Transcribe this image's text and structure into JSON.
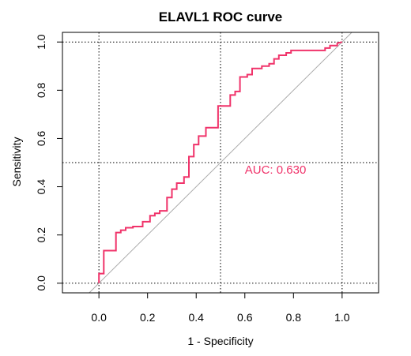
{
  "chart_data": {
    "type": "line",
    "title": "ELAVL1 ROC curve",
    "xlabel": "1 - Specificity",
    "ylabel": "Sensitivity",
    "xlim": [
      -0.15,
      1.15
    ],
    "ylim": [
      -0.04,
      1.04
    ],
    "x_ticks": [
      "0.0",
      "0.2",
      "0.4",
      "0.6",
      "0.8",
      "1.0"
    ],
    "y_ticks": [
      "0.0",
      "0.2",
      "0.4",
      "0.6",
      "0.8",
      "1.0"
    ],
    "grid": "dotted at 0, 0.5 and 1",
    "reference_line": {
      "x": [
        -0.15,
        1.15
      ],
      "y": [
        -0.15,
        1.15
      ],
      "color": "#aaaaaa"
    },
    "auc_text": "AUC: 0.630",
    "auc_position": {
      "x": 0.6,
      "y": 0.47
    },
    "colors": {
      "curve": "#f0336a",
      "auc": "#f0336a",
      "diagonal": "#aaaaaa",
      "grid": "#000000"
    },
    "series": [
      {
        "x": [
          0.0,
          0.0,
          0.02,
          0.02,
          0.07,
          0.07,
          0.09,
          0.09,
          0.11,
          0.11,
          0.14,
          0.14,
          0.18,
          0.18,
          0.21,
          0.21,
          0.23,
          0.23,
          0.25,
          0.25,
          0.28,
          0.28,
          0.3,
          0.3,
          0.32,
          0.32,
          0.35,
          0.35,
          0.37,
          0.37,
          0.39,
          0.39,
          0.41,
          0.41,
          0.44,
          0.44,
          0.49,
          0.49,
          0.54,
          0.54,
          0.56,
          0.56,
          0.58,
          0.58,
          0.61,
          0.61,
          0.63,
          0.63,
          0.67,
          0.67,
          0.7,
          0.7,
          0.72,
          0.72,
          0.74,
          0.74,
          0.77,
          0.77,
          0.79,
          0.79,
          0.93,
          0.93,
          0.95,
          0.95,
          0.98,
          0.98,
          1.0
        ],
        "y": [
          0.0,
          0.04,
          0.04,
          0.135,
          0.135,
          0.21,
          0.21,
          0.22,
          0.22,
          0.23,
          0.23,
          0.235,
          0.235,
          0.255,
          0.255,
          0.28,
          0.28,
          0.29,
          0.29,
          0.3,
          0.3,
          0.355,
          0.355,
          0.39,
          0.39,
          0.415,
          0.415,
          0.44,
          0.44,
          0.525,
          0.525,
          0.575,
          0.575,
          0.61,
          0.61,
          0.645,
          0.645,
          0.735,
          0.735,
          0.78,
          0.78,
          0.795,
          0.795,
          0.855,
          0.855,
          0.865,
          0.865,
          0.89,
          0.89,
          0.9,
          0.9,
          0.91,
          0.91,
          0.93,
          0.93,
          0.945,
          0.945,
          0.955,
          0.955,
          0.965,
          0.965,
          0.975,
          0.975,
          0.985,
          0.985,
          0.995,
          1.0
        ]
      }
    ]
  }
}
